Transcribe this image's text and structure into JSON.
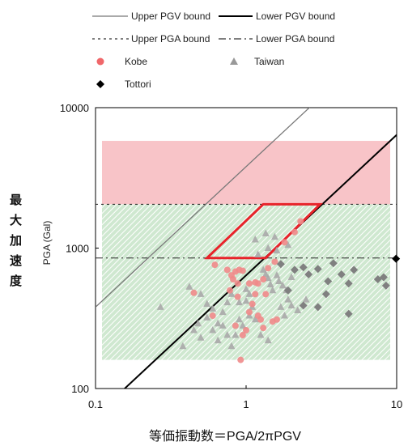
{
  "chart_data": {
    "type": "scatter",
    "xscale": "log",
    "yscale": "log",
    "xlim": [
      0.1,
      10
    ],
    "ylim": [
      100,
      10000
    ],
    "x_ticks": [
      "0.1",
      "1",
      "10"
    ],
    "y_ticks": [
      "100",
      "1000",
      "10000"
    ],
    "ylabel": "PGA (Gal)",
    "ylabel_jp": [
      "最",
      "大",
      "加",
      "速",
      "度"
    ],
    "xlabel": "等価振動数＝PGA/2πPGV",
    "legend": {
      "upper_pgv": "Upper PGV bound",
      "lower_pgv": "Lower PGV bound",
      "upper_pga": "Upper PGA bound",
      "lower_pga": "Lower PGA bound",
      "kobe": "Kobe",
      "taiwan": "Taiwan",
      "tottori": "Tottori"
    },
    "colors": {
      "kobe": "#f08a8a",
      "taiwan": "#a8a8a8",
      "tottori": "#808080",
      "red_zone": "#f8c4c8",
      "green_zone": "#cfe8d0",
      "diamond_outline": "#e8232a"
    },
    "bounds": {
      "upper_pga": 2050,
      "lower_pga": 850,
      "upper_pgv_intercept_pga_at_f1": 3800,
      "lower_pgv_intercept_pga_at_f1": 640
    },
    "zones": {
      "red": {
        "x": [
          0.1,
          10
        ],
        "y": [
          2050,
          5800
        ]
      },
      "green": {
        "x": [
          0.1,
          10
        ],
        "y": [
          160,
          2050
        ]
      }
    },
    "region_polygon": [
      [
        0.55,
        850
      ],
      [
        1.35,
        850
      ],
      [
        3.1,
        2050
      ],
      [
        1.3,
        2050
      ]
    ],
    "series": {
      "kobe": [
        [
          0.62,
          760
        ],
        [
          0.75,
          700
        ],
        [
          0.8,
          640
        ],
        [
          0.85,
          680
        ],
        [
          0.9,
          700
        ],
        [
          0.95,
          690
        ],
        [
          0.82,
          600
        ],
        [
          0.88,
          560
        ],
        [
          1.05,
          560
        ],
        [
          1.15,
          570
        ],
        [
          1.2,
          560
        ],
        [
          1.3,
          600
        ],
        [
          1.4,
          720
        ],
        [
          1.55,
          800
        ],
        [
          1.8,
          1100
        ],
        [
          2.1,
          1300
        ],
        [
          2.3,
          1550
        ],
        [
          0.78,
          500
        ],
        [
          0.88,
          450
        ],
        [
          1.15,
          470
        ],
        [
          1.35,
          470
        ],
        [
          1.1,
          400
        ],
        [
          1.05,
          350
        ],
        [
          1.2,
          330
        ],
        [
          1.25,
          310
        ],
        [
          1.5,
          300
        ],
        [
          1.6,
          310
        ],
        [
          0.85,
          280
        ],
        [
          1.0,
          260
        ],
        [
          1.3,
          270
        ],
        [
          0.95,
          240
        ],
        [
          0.6,
          330
        ],
        [
          0.45,
          480
        ],
        [
          0.92,
          160
        ]
      ],
      "taiwan": [
        [
          0.27,
          380
        ],
        [
          0.42,
          530
        ],
        [
          0.5,
          470
        ],
        [
          0.55,
          400
        ],
        [
          0.6,
          370
        ],
        [
          0.55,
          320
        ],
        [
          0.48,
          290
        ],
        [
          0.45,
          260
        ],
        [
          0.5,
          230
        ],
        [
          0.38,
          200
        ],
        [
          0.6,
          260
        ],
        [
          0.65,
          290
        ],
        [
          0.7,
          350
        ],
        [
          0.75,
          410
        ],
        [
          0.8,
          470
        ],
        [
          0.7,
          280
        ],
        [
          0.75,
          240
        ],
        [
          0.8,
          200
        ],
        [
          1.0,
          510
        ],
        [
          1.05,
          470
        ],
        [
          1.0,
          420
        ],
        [
          1.1,
          380
        ],
        [
          1.05,
          330
        ],
        [
          1.15,
          310
        ],
        [
          0.9,
          310
        ],
        [
          0.95,
          280
        ],
        [
          1.3,
          700
        ],
        [
          1.35,
          650
        ],
        [
          1.4,
          610
        ],
        [
          1.45,
          550
        ],
        [
          1.5,
          500
        ],
        [
          1.6,
          640
        ],
        [
          1.65,
          580
        ],
        [
          1.75,
          540
        ],
        [
          1.85,
          500
        ],
        [
          2.0,
          620
        ],
        [
          1.7,
          380
        ],
        [
          1.9,
          430
        ],
        [
          2.0,
          390
        ],
        [
          2.2,
          360
        ],
        [
          1.8,
          330
        ],
        [
          2.5,
          430
        ],
        [
          1.2,
          900
        ],
        [
          1.4,
          1000
        ],
        [
          1.6,
          960
        ],
        [
          1.9,
          1050
        ],
        [
          1.15,
          1150
        ],
        [
          1.35,
          1270
        ],
        [
          1.55,
          1200
        ],
        [
          0.9,
          410
        ],
        [
          1.25,
          240
        ],
        [
          1.4,
          220
        ],
        [
          0.65,
          220
        ],
        [
          0.85,
          240
        ]
      ],
      "tottori": [
        [
          1.7,
          770
        ],
        [
          2.1,
          700
        ],
        [
          2.4,
          730
        ],
        [
          2.6,
          650
        ],
        [
          3.0,
          710
        ],
        [
          3.5,
          580
        ],
        [
          3.8,
          780
        ],
        [
          4.3,
          650
        ],
        [
          4.8,
          560
        ],
        [
          5.2,
          700
        ],
        [
          7.5,
          600
        ],
        [
          8.2,
          620
        ],
        [
          8.5,
          540
        ],
        [
          9.9,
          840
        ],
        [
          3.0,
          380
        ],
        [
          4.8,
          340
        ],
        [
          2.4,
          390
        ],
        [
          3.4,
          470
        ],
        [
          1.9,
          500
        ]
      ]
    }
  }
}
